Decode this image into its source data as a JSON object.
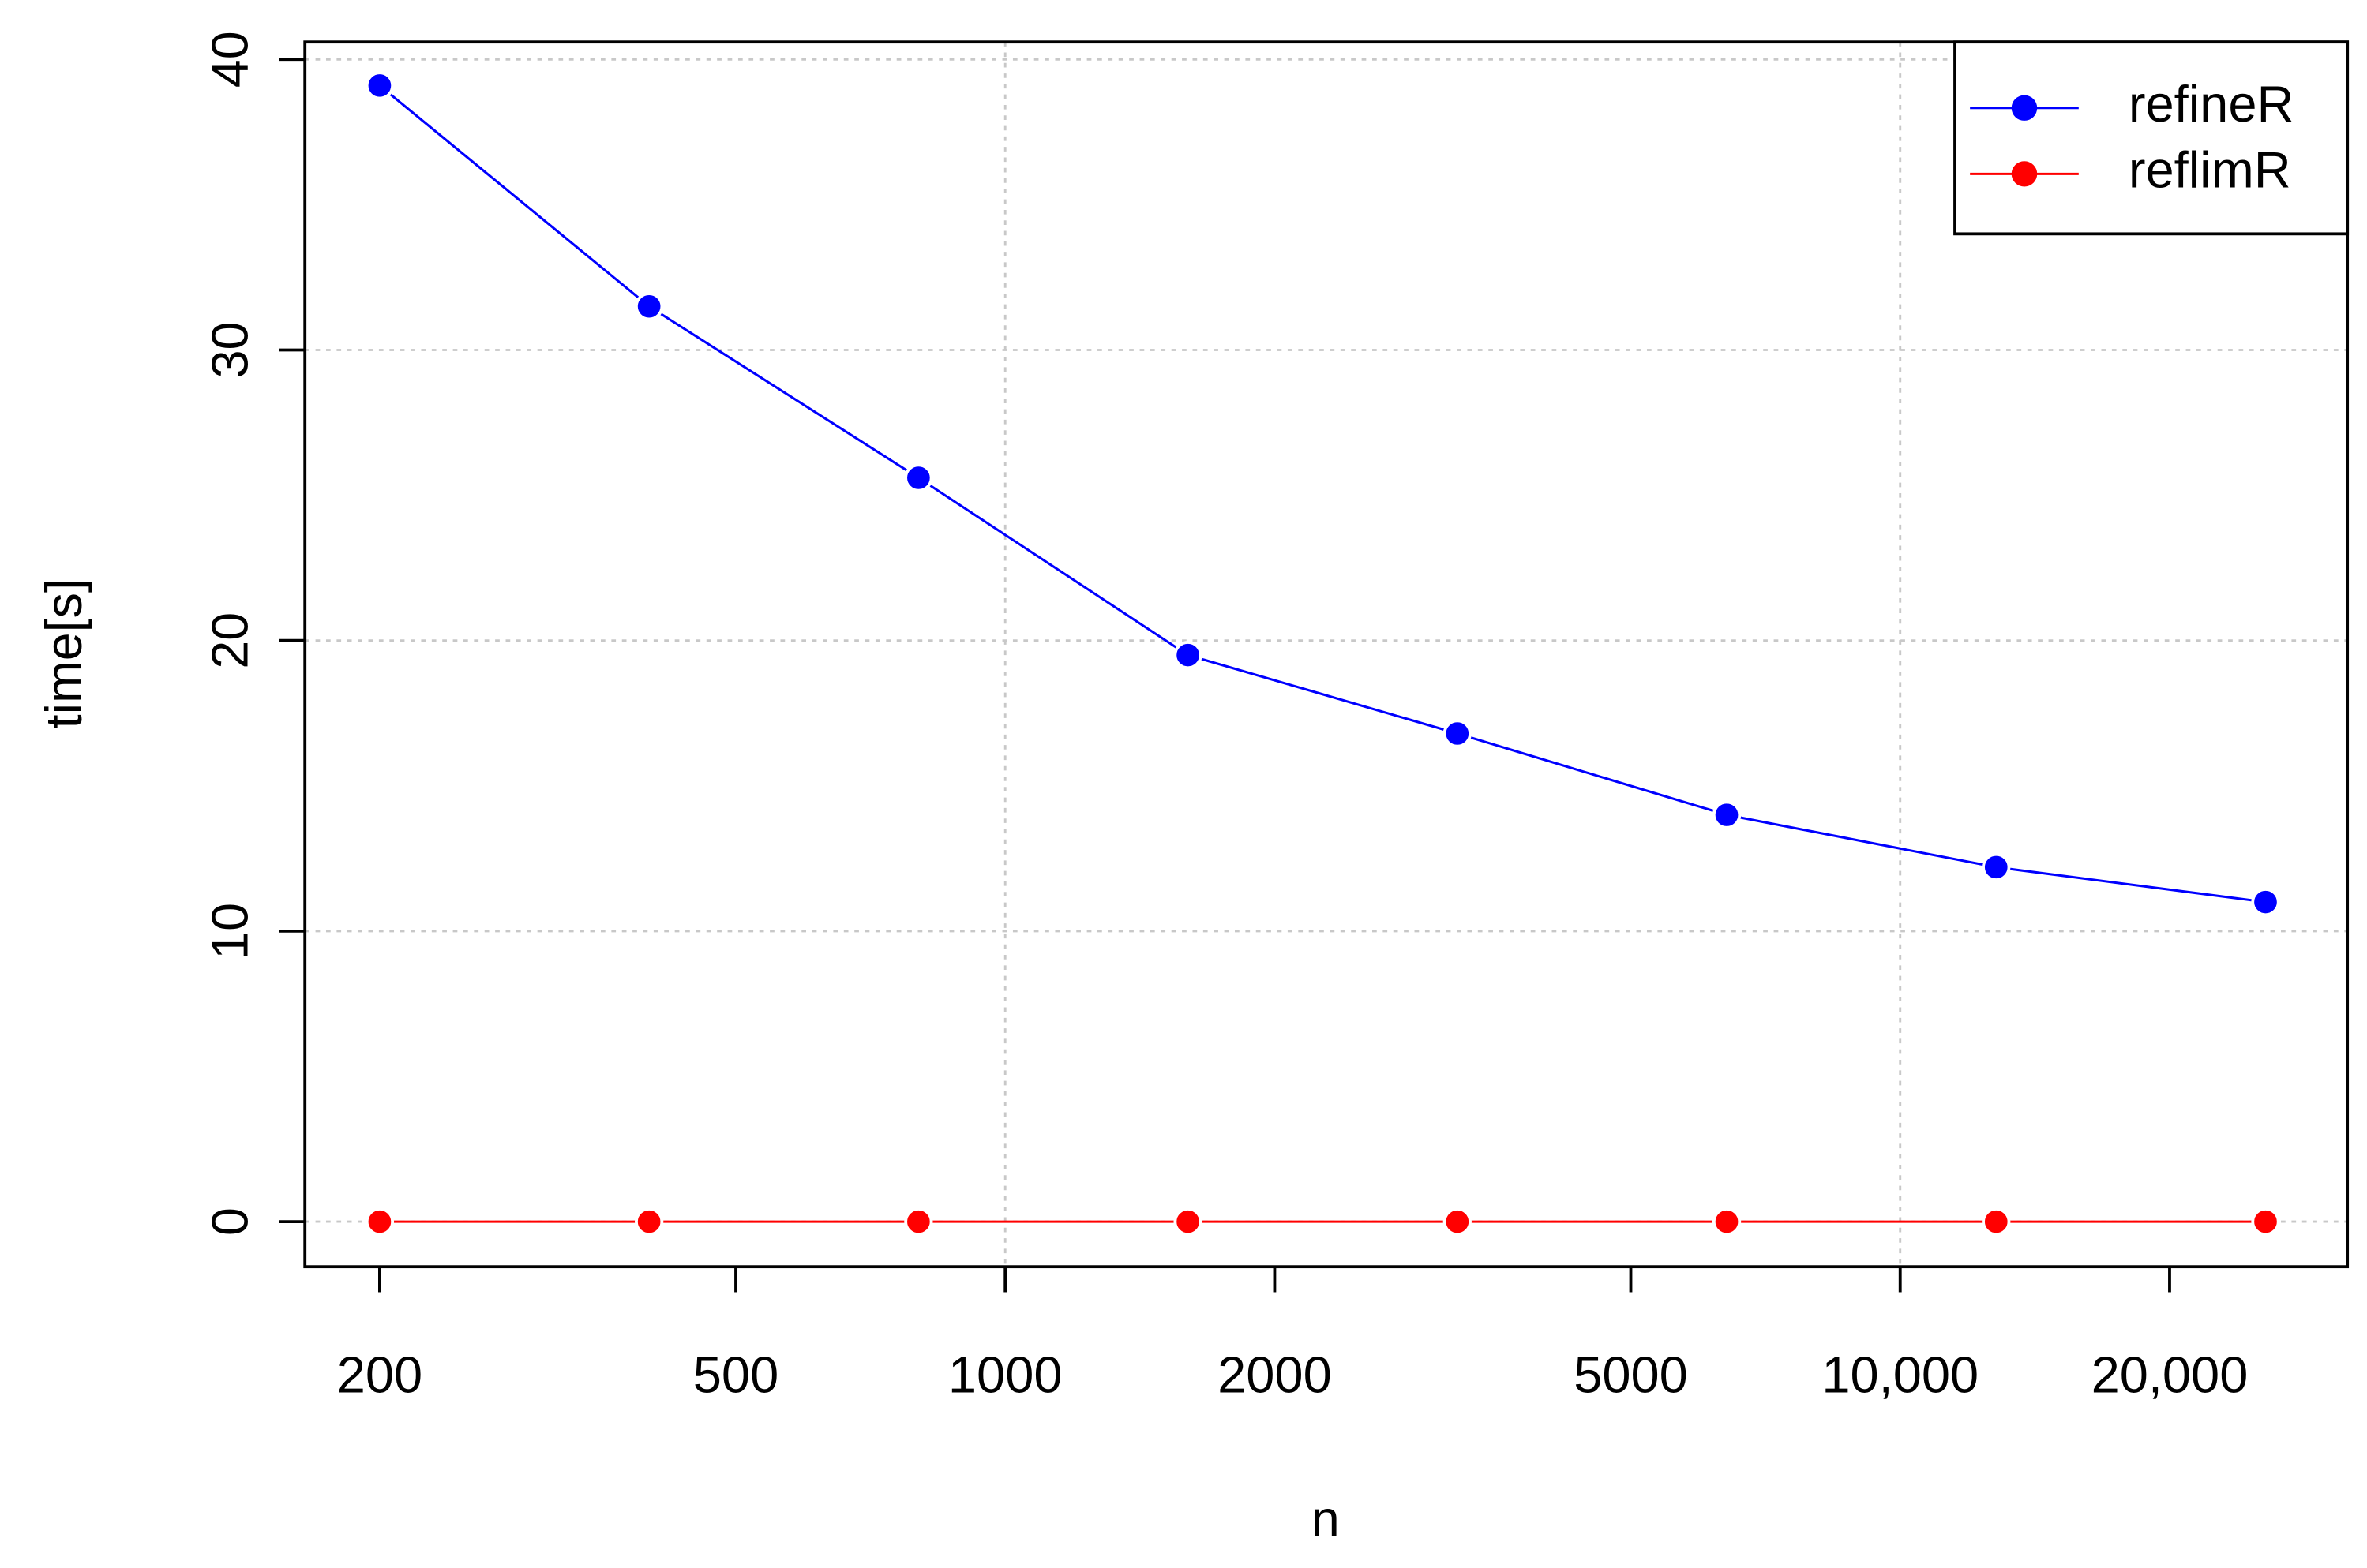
{
  "chart_data": {
    "type": "line",
    "x_label": "n",
    "y_label": "time[s]",
    "x": [
      200,
      400,
      800,
      1600,
      3200,
      6400,
      12800,
      25600
    ],
    "series": [
      {
        "name": "refineR",
        "color": "#0000ff",
        "values": [
          39.1,
          31.5,
          25.6,
          19.5,
          16.8,
          14.0,
          12.2,
          11.0
        ]
      },
      {
        "name": "reflimR",
        "color": "#ff0000",
        "values": [
          0,
          0,
          0,
          0,
          0,
          0,
          0,
          0
        ]
      }
    ],
    "xlim": [
      165,
      31600
    ],
    "xscale": "log",
    "xticks": [
      200,
      500,
      1000,
      2000,
      5000,
      {
        "value": 10000,
        "label": "10,000"
      },
      {
        "value": 20000,
        "label": "20,000"
      }
    ],
    "ylim": [
      -1.55,
      40.6
    ],
    "yticks": [
      0,
      10,
      20,
      30,
      40
    ],
    "grid": true,
    "legend": "upper right"
  }
}
